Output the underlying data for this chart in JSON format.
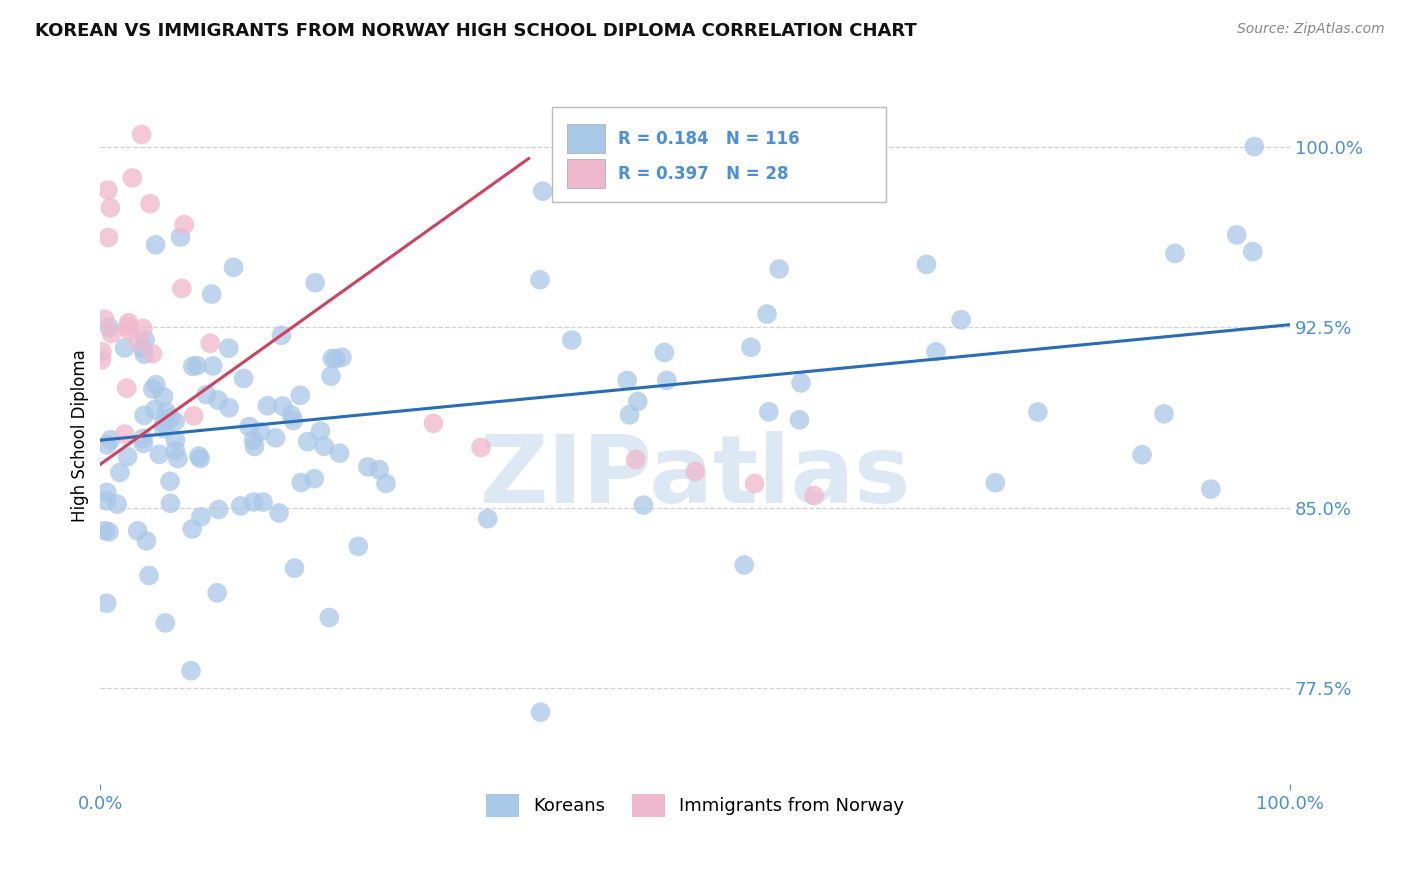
{
  "title": "KOREAN VS IMMIGRANTS FROM NORWAY HIGH SCHOOL DIPLOMA CORRELATION CHART",
  "source": "Source: ZipAtlas.com",
  "ylabel": "High School Diploma",
  "xlim": [
    0.0,
    1.0
  ],
  "ylim": [
    0.735,
    1.025
  ],
  "yticks": [
    0.775,
    0.85,
    0.925,
    1.0
  ],
  "ytick_labels": [
    "77.5%",
    "85.0%",
    "92.5%",
    "100.0%"
  ],
  "xtick_labels": [
    "0.0%",
    "100.0%"
  ],
  "xticks": [
    0.0,
    1.0
  ],
  "watermark": "ZIPatlas",
  "legend_entries": [
    {
      "label": "Koreans",
      "R": "0.184",
      "N": "116",
      "color": "#a8c8e8"
    },
    {
      "label": "Immigrants from Norway",
      "R": "0.397",
      "N": "28",
      "color": "#f0b8cc"
    }
  ],
  "blue_color": "#a8c8e8",
  "pink_color": "#f0b8cc",
  "blue_line_color": "#2a6db5",
  "pink_line_color": "#d04060",
  "background_color": "#ffffff",
  "grid_color": "#cccccc",
  "title_fontsize": 13,
  "axis_label_color": "#4a90d9",
  "watermark_color": "#dce8f4",
  "blue_line_start_y": 0.878,
  "blue_line_end_y": 0.926,
  "pink_line_x0": 0.0,
  "pink_line_y0": 0.868,
  "pink_line_x1": 0.36,
  "pink_line_y1": 0.995
}
